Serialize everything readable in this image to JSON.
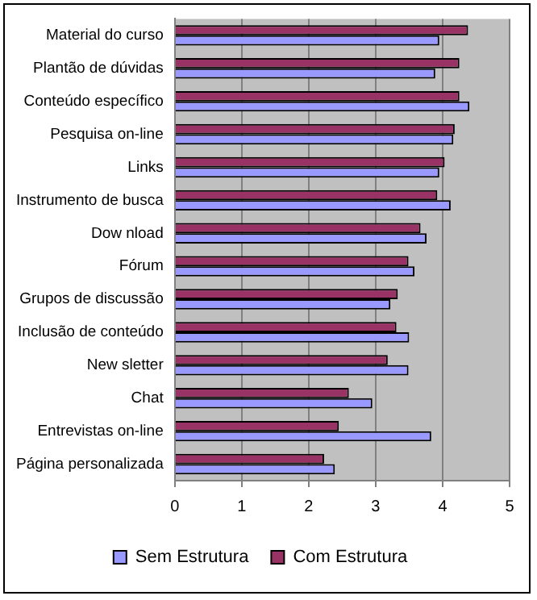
{
  "chart_data": {
    "type": "bar",
    "orientation": "horizontal",
    "categories": [
      "Material do curso",
      "Plantão de dúvidas",
      "Conteúdo específico",
      "Pesquisa on-line",
      "Links",
      "Instrumento de busca",
      "Dow nload",
      "Fórum",
      "Grupos de discussão",
      "Inclusão de conteúdo",
      "New sletter",
      "Chat",
      "Entrevistas on-line",
      "Página personalizada"
    ],
    "series": [
      {
        "name": "Sem Estrutura",
        "color": "#9999ff",
        "values": [
          3.95,
          3.89,
          4.4,
          4.16,
          3.95,
          4.12,
          3.76,
          3.58,
          3.22,
          3.5,
          3.49,
          2.95,
          3.83,
          2.39
        ]
      },
      {
        "name": "Com Estrutura",
        "color": "#993366",
        "values": [
          4.38,
          4.25,
          4.25,
          4.18,
          4.03,
          3.92,
          3.67,
          3.49,
          3.33,
          3.31,
          3.18,
          2.6,
          2.45,
          2.23
        ]
      }
    ],
    "xlim": [
      0,
      5
    ],
    "xticks": [
      0,
      1,
      2,
      3,
      4,
      5
    ],
    "grid": "x",
    "legend": "bottom"
  }
}
